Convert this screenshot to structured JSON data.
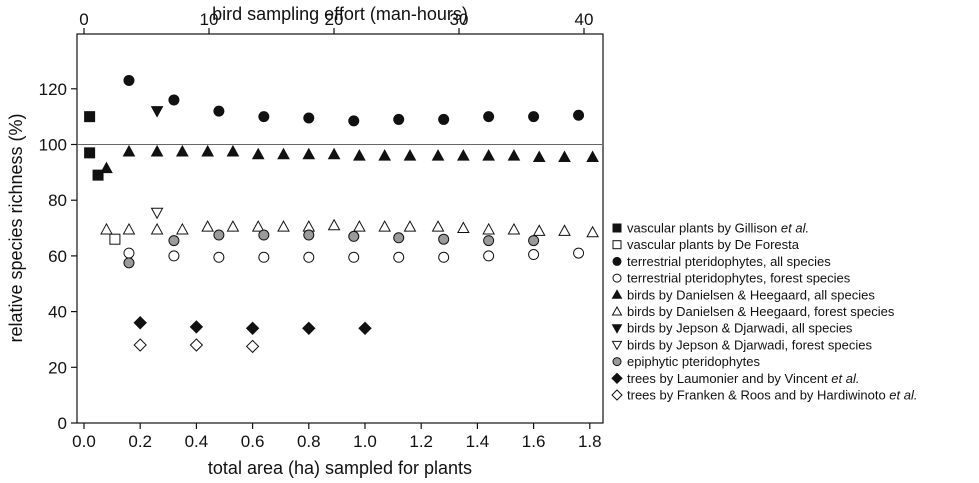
{
  "chart_data": {
    "type": "scatter",
    "title": "",
    "xlabel": "total area (ha) sampled for plants",
    "x2label": "bird sampling effort (man-hours)",
    "ylabel": "relative species richness (%)",
    "xlim": [
      0,
      1.85
    ],
    "x2lim": [
      0,
      41.1
    ],
    "ylim": [
      0,
      130
    ],
    "x_ticks": [
      "0.0",
      "0.2",
      "0.4",
      "0.6",
      "0.8",
      "1.0",
      "1.2",
      "1.4",
      "1.6",
      "1.8"
    ],
    "x2_ticks": [
      "0",
      "10",
      "20",
      "30",
      "40"
    ],
    "y_ticks": [
      "0",
      "20",
      "40",
      "60",
      "80",
      "100",
      "120"
    ],
    "reference_line_y": 100,
    "legend_position": "right",
    "series": [
      {
        "name": "vascular plants by Gillison",
        "name_italic": "et al.",
        "name_tail": "",
        "marker": "square-filled",
        "points": [
          [
            0.02,
            110
          ],
          [
            0.02,
            97
          ],
          [
            0.05,
            89
          ]
        ]
      },
      {
        "name": "vascular plants by De Foresta",
        "name_italic": "",
        "name_tail": "",
        "marker": "square-open",
        "points": [
          [
            0.11,
            66
          ]
        ]
      },
      {
        "name": "terrestrial pteridophytes, all species",
        "name_italic": "",
        "name_tail": "",
        "marker": "circle-filled",
        "points": [
          [
            0.16,
            123
          ],
          [
            0.32,
            116
          ],
          [
            0.48,
            112
          ],
          [
            0.64,
            110
          ],
          [
            0.8,
            109.5
          ],
          [
            0.96,
            108.5
          ],
          [
            1.12,
            109
          ],
          [
            1.28,
            109
          ],
          [
            1.44,
            110
          ],
          [
            1.6,
            110
          ],
          [
            1.76,
            110.5
          ]
        ]
      },
      {
        "name": "terrestrial pteridophytes, forest species",
        "name_italic": "",
        "name_tail": "",
        "marker": "circle-open",
        "points": [
          [
            0.16,
            61
          ],
          [
            0.32,
            60
          ],
          [
            0.48,
            59.5
          ],
          [
            0.64,
            59.5
          ],
          [
            0.8,
            59.5
          ],
          [
            0.96,
            59.5
          ],
          [
            1.12,
            59.5
          ],
          [
            1.28,
            59.5
          ],
          [
            1.44,
            60
          ],
          [
            1.6,
            60.5
          ],
          [
            1.76,
            61
          ]
        ]
      },
      {
        "name": "birds by Danielsen & Heegaard, all species",
        "name_italic": "",
        "name_tail": "",
        "marker": "triangle-up-filled",
        "points": [
          [
            0.08,
            91.5
          ],
          [
            0.16,
            97.5
          ],
          [
            0.26,
            97.5
          ],
          [
            0.35,
            97.5
          ],
          [
            0.44,
            97.5
          ],
          [
            0.53,
            97.5
          ],
          [
            0.62,
            96.5
          ],
          [
            0.71,
            96.5
          ],
          [
            0.8,
            96.5
          ],
          [
            0.89,
            96.5
          ],
          [
            0.98,
            96
          ],
          [
            1.07,
            96
          ],
          [
            1.16,
            96
          ],
          [
            1.26,
            96
          ],
          [
            1.35,
            96
          ],
          [
            1.44,
            96
          ],
          [
            1.53,
            96
          ],
          [
            1.62,
            95.5
          ],
          [
            1.71,
            95.5
          ],
          [
            1.81,
            95.5
          ]
        ]
      },
      {
        "name": "birds by Danielsen & Heegaard, forest species",
        "name_italic": "",
        "name_tail": "",
        "marker": "triangle-up-open",
        "points": [
          [
            0.08,
            69.5
          ],
          [
            0.16,
            69.5
          ],
          [
            0.26,
            69.5
          ],
          [
            0.35,
            69.5
          ],
          [
            0.44,
            70.5
          ],
          [
            0.53,
            70.5
          ],
          [
            0.62,
            70.5
          ],
          [
            0.71,
            70.5
          ],
          [
            0.8,
            70.5
          ],
          [
            0.89,
            71
          ],
          [
            0.98,
            70.5
          ],
          [
            1.07,
            70.5
          ],
          [
            1.16,
            70.5
          ],
          [
            1.26,
            70.5
          ],
          [
            1.35,
            70
          ],
          [
            1.44,
            69.5
          ],
          [
            1.53,
            69.5
          ],
          [
            1.62,
            69
          ],
          [
            1.71,
            69
          ],
          [
            1.81,
            68.5
          ]
        ]
      },
      {
        "name": "birds by Jepson & Djarwadi, all species",
        "name_italic": "",
        "name_tail": "",
        "marker": "triangle-down-filled",
        "points": [
          [
            0.26,
            112
          ]
        ]
      },
      {
        "name": "birds by Jepson & Djarwadi, forest species",
        "name_italic": "",
        "name_tail": "",
        "marker": "triangle-down-open",
        "points": [
          [
            0.26,
            75.5
          ]
        ]
      },
      {
        "name": "epiphytic pteridophytes",
        "name_italic": "",
        "name_tail": "",
        "marker": "circle-gray",
        "points": [
          [
            0.16,
            57.5
          ],
          [
            0.32,
            65.5
          ],
          [
            0.48,
            67.5
          ],
          [
            0.64,
            67.5
          ],
          [
            0.8,
            67.5
          ],
          [
            0.96,
            67
          ],
          [
            1.12,
            66.5
          ],
          [
            1.28,
            66
          ],
          [
            1.44,
            65.5
          ],
          [
            1.6,
            65.5
          ]
        ]
      },
      {
        "name": "trees by Laumonier and by Vincent",
        "name_italic": "et al.",
        "name_tail": "",
        "marker": "diamond-filled",
        "points": [
          [
            0.2,
            36
          ],
          [
            0.4,
            34.5
          ],
          [
            0.6,
            34
          ],
          [
            0.8,
            34
          ],
          [
            1.0,
            34
          ]
        ]
      },
      {
        "name": "trees by Franken & Roos and by Hardiwinoto",
        "name_italic": "et al.",
        "name_tail": "",
        "marker": "diamond-open",
        "points": [
          [
            0.2,
            28
          ],
          [
            0.4,
            28
          ],
          [
            0.6,
            27.5
          ]
        ]
      }
    ]
  }
}
